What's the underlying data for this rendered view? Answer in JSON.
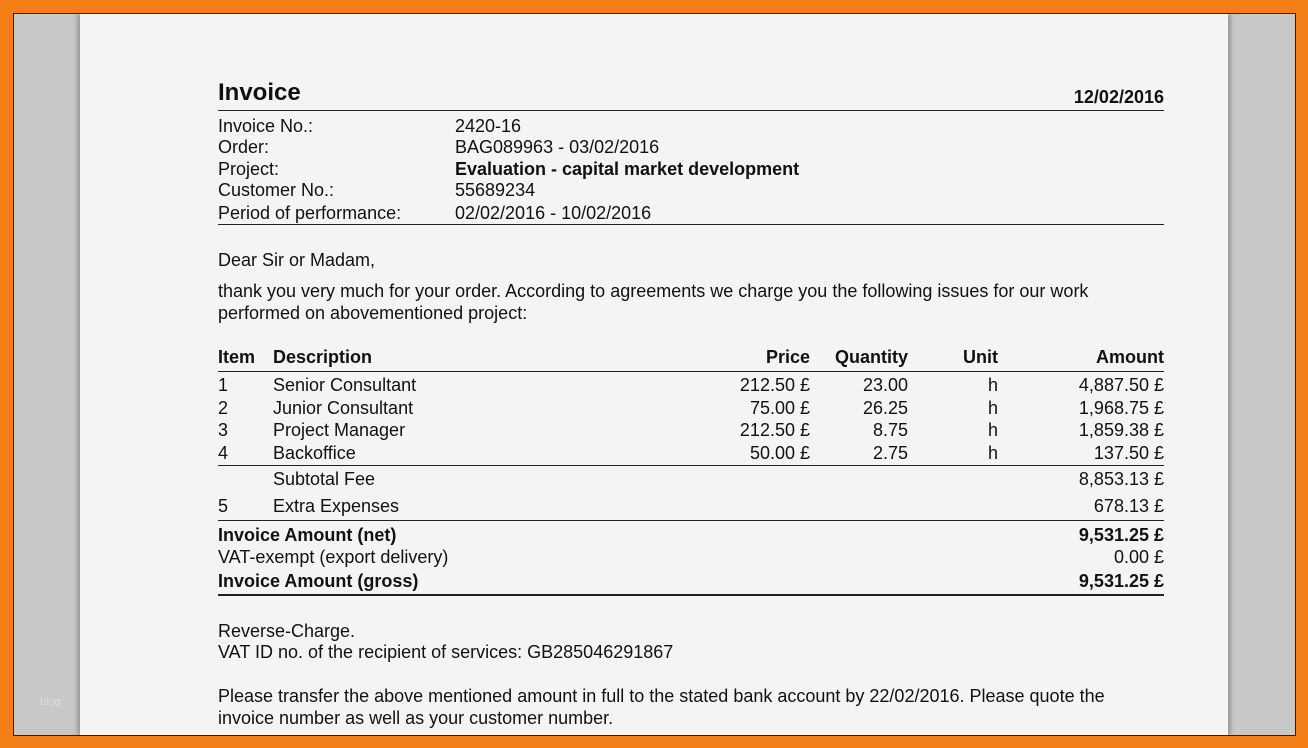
{
  "watermark": "blog",
  "title": "Invoice",
  "date": "12/02/2016",
  "meta": [
    {
      "label": "Invoice No.:",
      "value": "2420-16"
    },
    {
      "label": "Order:",
      "value": "BAG089963 - 03/02/2016"
    },
    {
      "label": "Project:",
      "value": "Evaluation - capital market development"
    },
    {
      "label": "Customer No.:",
      "value": "55689234"
    },
    {
      "label": "Period of performance:",
      "value": "02/02/2016 - 10/02/2016"
    }
  ],
  "greeting": "Dear Sir or Madam,",
  "intro": [
    "thank you very much for your order. According to agreements we charge you the following issues for our work",
    "performed on abovementioned project:"
  ],
  "table": {
    "headers": {
      "item": "Item",
      "description": "Description",
      "price": "Price",
      "quantity": "Quantity",
      "unit": "Unit",
      "amount": "Amount"
    },
    "rows": [
      {
        "item": "1",
        "description": "Senior Consultant",
        "price": "212.50 £",
        "quantity": "23.00",
        "unit": "h",
        "amount": "4,887.50 £"
      },
      {
        "item": "2",
        "description": "Junior Consultant",
        "price": "75.00 £",
        "quantity": "26.25",
        "unit": "h",
        "amount": "1,968.75 £"
      },
      {
        "item": "3",
        "description": "Project Manager",
        "price": "212.50 £",
        "quantity": "8.75",
        "unit": "h",
        "amount": "1,859.38 £"
      },
      {
        "item": "4",
        "description": "Backoffice",
        "price": "50.00 £",
        "quantity": "2.75",
        "unit": "h",
        "amount": "137.50 £"
      }
    ],
    "subtotal": {
      "label": "Subtotal Fee",
      "amount": "8,853.13 £"
    },
    "extra": {
      "item": "5",
      "description": "Extra Expenses",
      "amount": "678.13 £"
    },
    "net": {
      "label": "Invoice Amount (net)",
      "amount": "9,531.25 £"
    },
    "vat": {
      "label": "VAT-exempt (export delivery)",
      "amount": "0.00 £"
    },
    "gross": {
      "label": "Invoice Amount (gross)",
      "amount": "9,531.25 £"
    }
  },
  "reverse_charge": "Reverse-Charge.",
  "vat_id": "VAT ID no. of the recipient of services: GB285046291867",
  "closing": [
    "Please transfer the above mentioned amount in full to the stated bank account by 22/02/2016. Please quote the",
    "invoice number as well as your customer number."
  ]
}
